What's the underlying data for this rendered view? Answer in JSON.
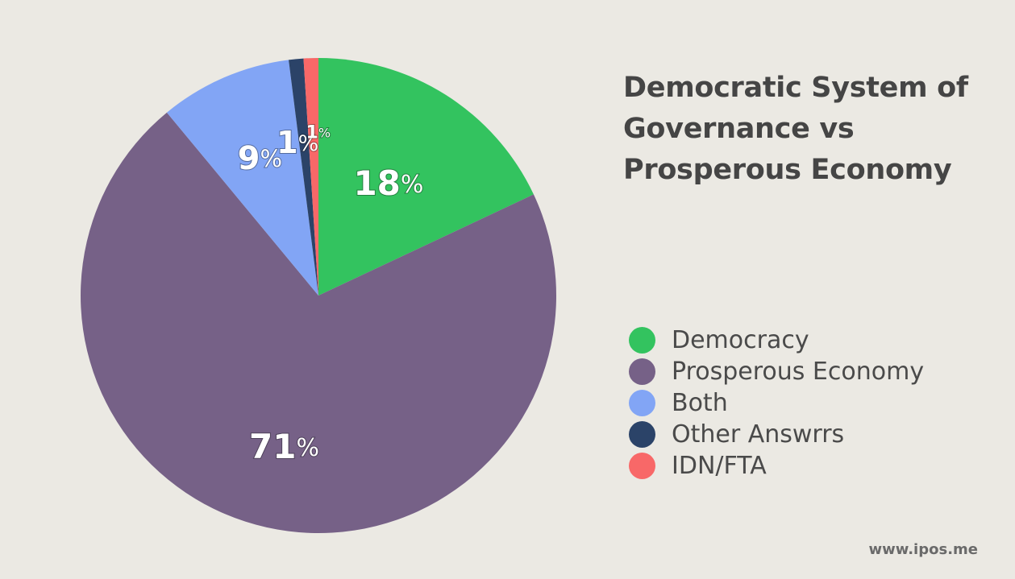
{
  "chart_data": {
    "type": "pie",
    "title": "Democratic System of Governance vs Prosperous Economy",
    "start_at": "12 o'clock",
    "direction": "clockwise",
    "slices": [
      {
        "name": "Democracy",
        "value": 18,
        "label": "18",
        "suffix": "%",
        "color": "#33c35f"
      },
      {
        "name": "Prosperous Economy",
        "value": 71,
        "label": "71",
        "suffix": "%",
        "color": "#766187"
      },
      {
        "name": "Both",
        "value": 9,
        "label": "9",
        "suffix": "%",
        "color": "#82a5f5"
      },
      {
        "name": "Other Answrrs",
        "value": 1,
        "label": "1",
        "suffix": "%",
        "color": "#2b4368"
      },
      {
        "name": "IDN/FTA",
        "value": 1,
        "label": "1",
        "suffix": "%",
        "color": "#f86868"
      }
    ]
  },
  "legend": {
    "items": [
      {
        "label": "Democracy",
        "color": "#33c35f"
      },
      {
        "label": "Prosperous Economy",
        "color": "#766187"
      },
      {
        "label": "Both",
        "color": "#82a5f5"
      },
      {
        "label": "Other Answrrs",
        "color": "#2b4368"
      },
      {
        "label": "IDN/FTA",
        "color": "#f86868"
      }
    ]
  },
  "watermark": "www.ipos.me"
}
